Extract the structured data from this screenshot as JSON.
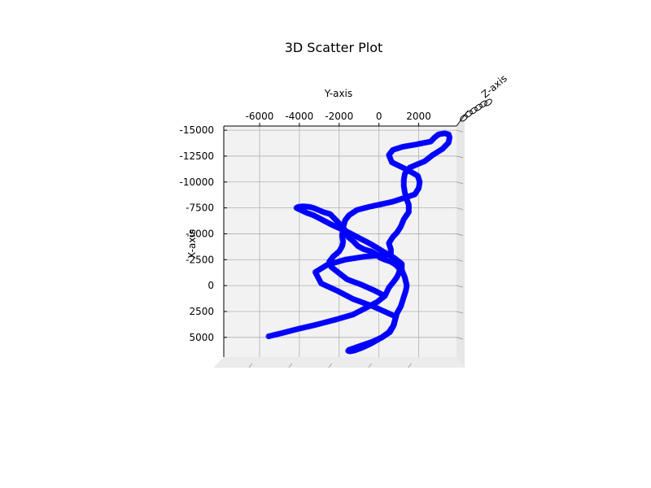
{
  "chart_data": {
    "type": "scatter",
    "title": "3D Scatter Plot",
    "xlabel": "X-axis",
    "ylabel": "Y-axis",
    "zlabel": "Z-axis",
    "view": "top-down",
    "grid": true,
    "x_ticks": [
      "-15000",
      "-12500",
      "-10000",
      "-7500",
      "-5000",
      "-2500",
      "0",
      "2500",
      "5000"
    ],
    "y_ticks": [
      "-6000",
      "-4000",
      "-2000",
      "0",
      "2000"
    ],
    "xlim": [
      -15400,
      6900
    ],
    "ylim": [
      -7800,
      3900
    ],
    "marker_color": "#0000ff",
    "series": [
      {
        "points": [
          [
            4900,
            -5550
          ],
          [
            4600,
            -4900
          ],
          [
            4200,
            -4100
          ],
          [
            3800,
            -3200
          ],
          [
            3300,
            -2200
          ],
          [
            2800,
            -1300
          ],
          [
            2200,
            -700
          ],
          [
            1600,
            -100
          ],
          [
            1000,
            300
          ],
          [
            200,
            500
          ],
          [
            -400,
            750
          ],
          [
            -800,
            900
          ],
          [
            -1200,
            1000
          ],
          [
            -1600,
            1050
          ],
          [
            -2000,
            850
          ],
          [
            -2300,
            600
          ],
          [
            -2500,
            300
          ],
          [
            -2700,
            50
          ],
          [
            -3000,
            -100
          ],
          [
            -3300,
            -400
          ],
          [
            -3500,
            -750
          ],
          [
            -3800,
            -1050
          ],
          [
            -4300,
            -1300
          ],
          [
            -4700,
            -1550
          ],
          [
            -5000,
            -1600
          ],
          [
            -5300,
            -1700
          ],
          [
            -5600,
            -1800
          ],
          [
            -5900,
            -1950
          ],
          [
            -6300,
            -2150
          ],
          [
            -6600,
            -2300
          ],
          [
            -6900,
            -2450
          ],
          [
            -7100,
            -2800
          ],
          [
            -7350,
            -3100
          ],
          [
            -7500,
            -3300
          ],
          [
            -7600,
            -3500
          ],
          [
            -7650,
            -3800
          ],
          [
            -7600,
            -4050
          ],
          [
            -7500,
            -4150
          ],
          [
            -7400,
            -4050
          ],
          [
            -7000,
            -3600
          ],
          [
            -6800,
            -3300
          ],
          [
            -6500,
            -3000
          ],
          [
            -6200,
            -2700
          ],
          [
            -5800,
            -2300
          ],
          [
            -5300,
            -1700
          ],
          [
            -4700,
            -1100
          ],
          [
            -4000,
            -400
          ],
          [
            -3300,
            200
          ],
          [
            -2700,
            750
          ],
          [
            -2100,
            1150
          ],
          [
            -1500,
            1150
          ],
          [
            -800,
            1300
          ],
          [
            0,
            1400
          ],
          [
            500,
            1350
          ],
          [
            1100,
            1250
          ],
          [
            2000,
            1100
          ],
          [
            2700,
            900
          ],
          [
            3400,
            800
          ],
          [
            4000,
            700
          ],
          [
            4500,
            550
          ],
          [
            5000,
            150
          ],
          [
            5600,
            -400
          ],
          [
            6000,
            -850
          ],
          [
            6250,
            -1200
          ],
          [
            6350,
            -1450
          ],
          [
            6300,
            -1550
          ],
          [
            6200,
            -1500
          ],
          [
            5800,
            -900
          ],
          [
            5400,
            -300
          ],
          [
            5000,
            150
          ],
          [
            4500,
            500
          ],
          [
            3800,
            750
          ],
          [
            3000,
            850
          ],
          [
            2000,
            -300
          ],
          [
            1300,
            -1300
          ],
          [
            500,
            -2100
          ],
          [
            -200,
            -2900
          ],
          [
            -1300,
            -3200
          ],
          [
            -2000,
            -2600
          ],
          [
            -2500,
            -1700
          ],
          [
            -2800,
            -700
          ],
          [
            -3000,
            600
          ],
          [
            -3500,
            600
          ],
          [
            -4100,
            500
          ],
          [
            -4700,
            700
          ],
          [
            -5100,
            900
          ],
          [
            -5700,
            1100
          ],
          [
            -6400,
            1250
          ],
          [
            -7100,
            1500
          ],
          [
            -7800,
            1500
          ],
          [
            -8300,
            1400
          ],
          [
            -9000,
            1300
          ],
          [
            -9600,
            1250
          ],
          [
            -10200,
            1250
          ],
          [
            -10800,
            1300
          ],
          [
            -11400,
            1550
          ],
          [
            -12000,
            2300
          ],
          [
            -12600,
            2700
          ],
          [
            -13200,
            3200
          ],
          [
            -13800,
            3500
          ],
          [
            -14300,
            3550
          ],
          [
            -14600,
            3500
          ],
          [
            -14700,
            3300
          ],
          [
            -14600,
            3000
          ],
          [
            -14300,
            2800
          ],
          [
            -13900,
            2600
          ],
          [
            -13600,
            1800
          ],
          [
            -13400,
            1200
          ],
          [
            -13100,
            700
          ],
          [
            -12600,
            500
          ],
          [
            -11900,
            650
          ],
          [
            -11200,
            1400
          ],
          [
            -10600,
            1950
          ],
          [
            -10000,
            2050
          ],
          [
            -9400,
            2000
          ],
          [
            -8800,
            1800
          ],
          [
            -8100,
            700
          ],
          [
            -7600,
            -500
          ],
          [
            -7300,
            -1100
          ],
          [
            -6800,
            -1500
          ],
          [
            -6300,
            -1700
          ],
          [
            -5600,
            -1800
          ],
          [
            -4800,
            -1850
          ],
          [
            -4200,
            -1800
          ],
          [
            -3800,
            -1850
          ],
          [
            -3300,
            -2000
          ],
          [
            -2800,
            -2300
          ],
          [
            -2300,
            -2500
          ],
          [
            -1800,
            -2400
          ],
          [
            -1200,
            -2000
          ],
          [
            -600,
            -1600
          ],
          [
            -100,
            -900
          ],
          [
            500,
            -200
          ],
          [
            1000,
            300
          ]
        ]
      }
    ]
  }
}
